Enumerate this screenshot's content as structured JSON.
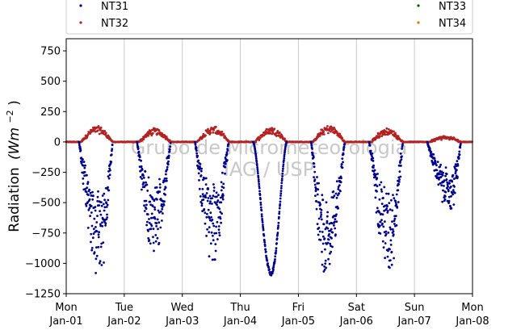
{
  "chart_data": {
    "type": "scatter",
    "ylabel": "Radiation",
    "ylabel_unit": "(Wm",
    "ylabel_exp": "−2",
    "ylabel_close": ")",
    "ylim": [
      -1250,
      850
    ],
    "yticks": [
      -1250,
      -1000,
      -750,
      -500,
      -250,
      0,
      250,
      500,
      750
    ],
    "ytick_labels": [
      "−1250",
      "−1000",
      "−750",
      "−500",
      "−250",
      "0",
      "250",
      "500",
      "750"
    ],
    "xlim": [
      0,
      7
    ],
    "xticks": [
      {
        "x": 0,
        "day": "Mon",
        "date": "Jan-01"
      },
      {
        "x": 1,
        "day": "Tue",
        "date": "Jan-02"
      },
      {
        "x": 2,
        "day": "Wed",
        "date": "Jan-03"
      },
      {
        "x": 3,
        "day": "Thu",
        "date": "Jan-04"
      },
      {
        "x": 4,
        "day": "Fri",
        "date": "Jan-05"
      },
      {
        "x": 5,
        "day": "Sat",
        "date": "Jan-06"
      },
      {
        "x": 6,
        "day": "Sun",
        "date": "Jan-07"
      },
      {
        "x": 7,
        "day": "Mon",
        "date": "Jan-08"
      }
    ],
    "grid_x": true,
    "grid_y": false,
    "legend_position": "top",
    "series": [
      {
        "name": "NT31",
        "color": "#00008b",
        "days": [
          {
            "min": -1190,
            "minx": 0.57,
            "noise": 0.55
          },
          {
            "min": -1020,
            "minx": 1.52,
            "noise": 0.55
          },
          {
            "min": -1080,
            "minx": 2.53,
            "noise": 0.55
          },
          {
            "min": -1100,
            "minx": 3.53,
            "noise": 0.03
          },
          {
            "min": -1215,
            "minx": 4.48,
            "noise": 0.45
          },
          {
            "min": -1150,
            "minx": 5.57,
            "noise": 0.55
          },
          {
            "min": -620,
            "minx": 6.63,
            "noise": 0.5
          }
        ]
      },
      {
        "name": "NT32",
        "color": "#b22222",
        "days": [
          {
            "max": 130
          },
          {
            "max": 110
          },
          {
            "max": 125
          },
          {
            "max": 120
          },
          {
            "max": 135
          },
          {
            "max": 110
          },
          {
            "max": 45
          }
        ]
      },
      {
        "name": "NT33",
        "color": "#006400",
        "days": []
      },
      {
        "name": "NT34",
        "color": "#cc7a00",
        "days": []
      }
    ],
    "watermark_line1": "Grupo de Micrometeorologia",
    "watermark_line2": "IAG / USP"
  }
}
